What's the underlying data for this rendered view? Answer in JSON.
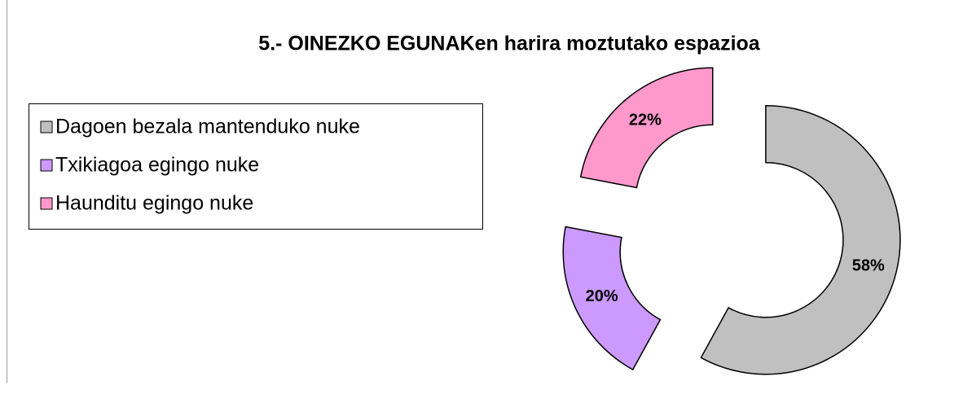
{
  "chart_data": {
    "type": "donut",
    "title": "5.- OINEZKO EGUNAKen harira moztutako espazioa",
    "categories": [
      "Dagoen bezala mantenduko nuke",
      "Txikiagoa egingo nuke",
      "Haunditu egingo nuke"
    ],
    "values": [
      58,
      20,
      22
    ],
    "value_labels": [
      "58%",
      "20%",
      "22%"
    ],
    "colors": [
      "#c0c0c0",
      "#cc99ff",
      "#ff99cc"
    ],
    "legend": "left"
  }
}
